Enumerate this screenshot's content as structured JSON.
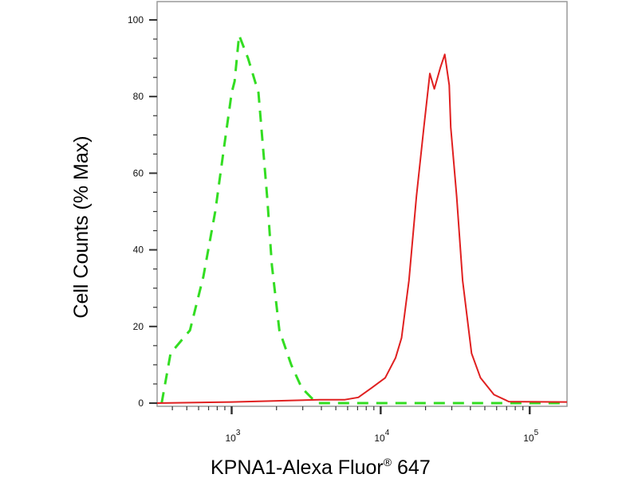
{
  "chart_data": {
    "type": "line",
    "title": "",
    "xlabel": "KPNA1-Alexa Fluor",
    "xlabel_mark": "®",
    "xlabel_suffix": " 647",
    "ylabel": "Cell Counts (% Max)",
    "x_scale": "log",
    "xlim": [
      316,
      178000
    ],
    "ylim": [
      0,
      100
    ],
    "grid": false,
    "legend": "none",
    "y_ticks": [
      0,
      20,
      40,
      60,
      80,
      100
    ],
    "y_tick_labels": [
      "0",
      "20",
      "40",
      "60",
      "80",
      "100"
    ],
    "x_ticks": [
      1000,
      10000,
      100000
    ],
    "x_tick_labels": [
      {
        "base": "10",
        "exp": "3"
      },
      {
        "base": "10",
        "exp": "4"
      },
      {
        "base": "10",
        "exp": "5"
      }
    ],
    "series": [
      {
        "color": "#33dd22",
        "style": "dashed",
        "points": [
          [
            339,
            0
          ],
          [
            389,
            13
          ],
          [
            525,
            19
          ],
          [
            646,
            33
          ],
          [
            776,
            50
          ],
          [
            891,
            67
          ],
          [
            1000,
            81
          ],
          [
            1047,
            84
          ],
          [
            1122,
            96
          ],
          [
            1288,
            90
          ],
          [
            1514,
            81
          ],
          [
            1622,
            67
          ],
          [
            1738,
            53
          ],
          [
            1862,
            36
          ],
          [
            2089,
            19
          ],
          [
            2512,
            10
          ],
          [
            2951,
            4
          ],
          [
            3715,
            0
          ],
          [
            178000,
            0
          ]
        ]
      },
      {
        "color": "#e02020",
        "style": "solid",
        "points": [
          [
            316,
            0
          ],
          [
            1000,
            0.3
          ],
          [
            3890,
            0.9
          ],
          [
            5754,
            0.9
          ],
          [
            7079,
            1.5
          ],
          [
            8710,
            4
          ],
          [
            10715,
            6.6
          ],
          [
            12589,
            11.8
          ],
          [
            13804,
            17
          ],
          [
            15488,
            32
          ],
          [
            17378,
            54
          ],
          [
            19498,
            72
          ],
          [
            21380,
            86
          ],
          [
            22909,
            82
          ],
          [
            25119,
            87.5
          ],
          [
            26915,
            91
          ],
          [
            28840,
            83
          ],
          [
            29512,
            72
          ],
          [
            32359,
            54
          ],
          [
            35481,
            32
          ],
          [
            40738,
            13
          ],
          [
            46774,
            6.6
          ],
          [
            57544,
            2.2
          ],
          [
            72444,
            0.4
          ],
          [
            178000,
            0.3
          ]
        ]
      }
    ]
  }
}
